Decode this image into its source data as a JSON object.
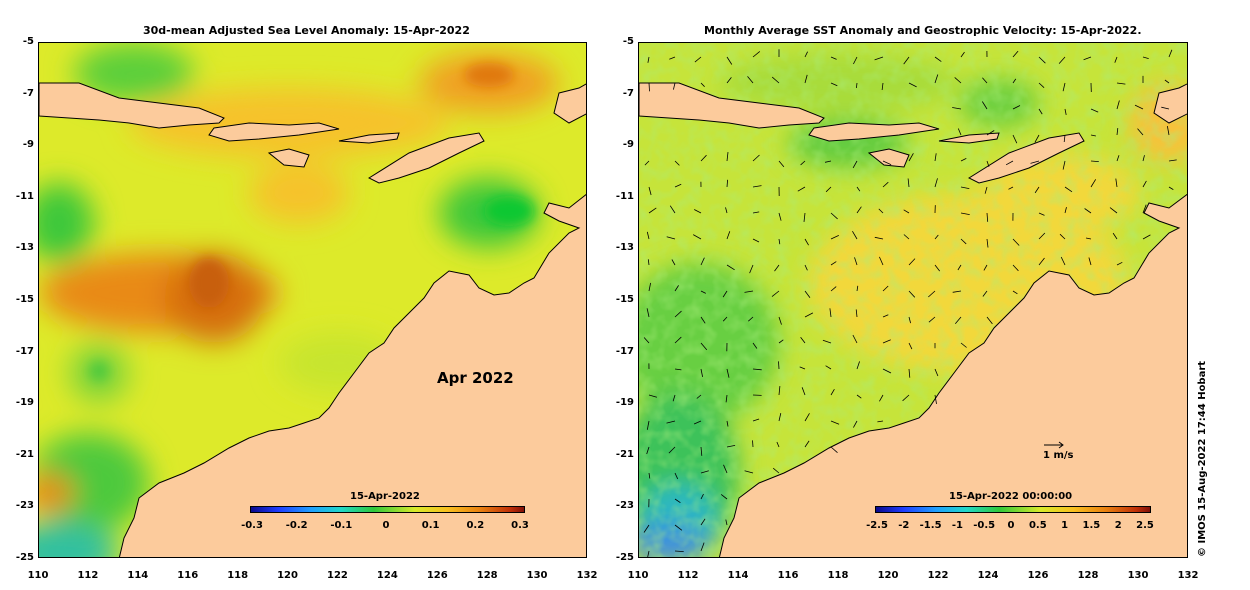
{
  "left_panel": {
    "title": "30d-mean Adjusted Sea Level Anomaly: 15-Apr-2022",
    "month_label": "Apr 2022",
    "colorbar_title": "15-Apr-2022",
    "colorbar_ticks": [
      "-0.3",
      "-0.2",
      "-0.1",
      "0",
      "0.1",
      "0.2",
      "0.3"
    ]
  },
  "right_panel": {
    "title": "Monthly Average SST Anomaly  and Geostrophic Velocity: 15-Apr-2022.",
    "colorbar_title": "15-Apr-2022 00:00:00",
    "colorbar_ticks": [
      "-2.5",
      "-2",
      "-1.5",
      "-1",
      "-0.5",
      "0",
      "0.5",
      "1",
      "1.5",
      "2",
      "2.5"
    ],
    "velocity_scale_label": "1 m/s"
  },
  "axes": {
    "lon_ticks": [
      "110",
      "112",
      "114",
      "116",
      "118",
      "120",
      "122",
      "124",
      "126",
      "128",
      "130",
      "132"
    ],
    "lat_ticks": [
      "-5",
      "-7",
      "-9",
      "-11",
      "-13",
      "-15",
      "-17",
      "-19",
      "-21",
      "-23",
      "-25"
    ]
  },
  "credit": "© IMOS 15-Aug-2022 17:44 Hobart",
  "colors": {
    "land": "#FCCB9C",
    "ocean_base": "#DDEA2A",
    "sst_base": "#C6E43A"
  }
}
